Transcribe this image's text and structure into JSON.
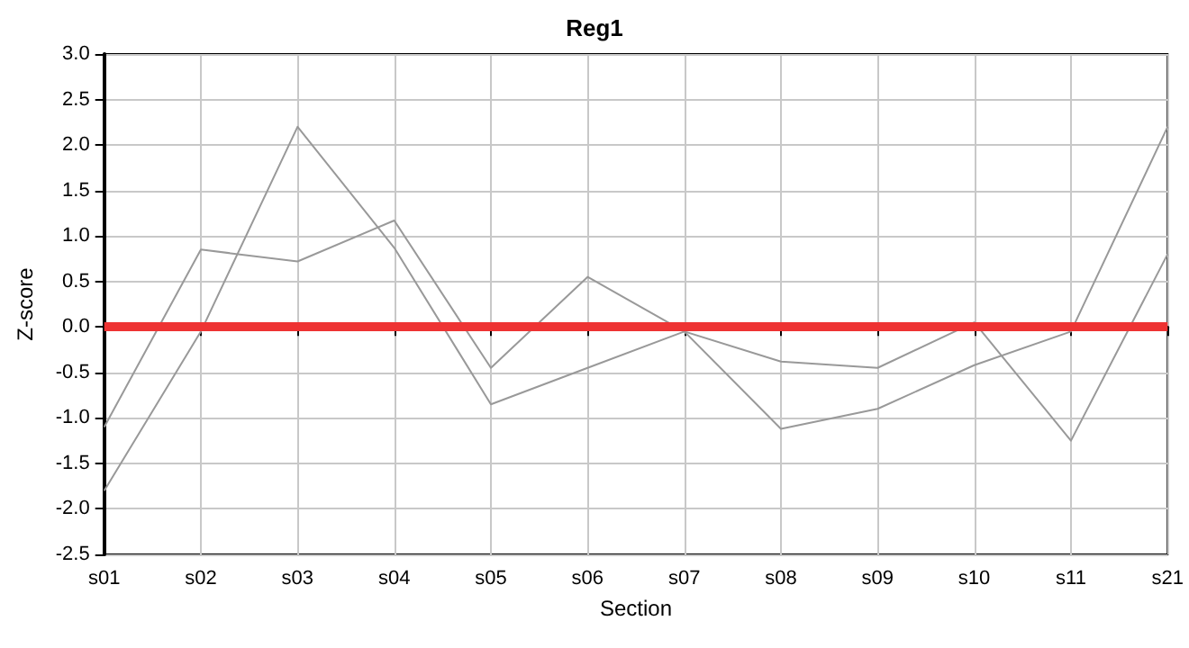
{
  "chart_data": {
    "type": "line",
    "title": "Reg1",
    "xlabel": "Section",
    "ylabel": "Z-score",
    "categories": [
      "s01",
      "s02",
      "s03",
      "s04",
      "s05",
      "s06",
      "s07",
      "s08",
      "s09",
      "s10",
      "s11",
      "s21"
    ],
    "series": [
      {
        "color": "#999999",
        "values": [
          -1.1,
          0.85,
          0.72,
          1.17,
          -0.45,
          0.55,
          -0.05,
          -0.38,
          -0.45,
          0.05,
          -1.25,
          0.8
        ]
      },
      {
        "color": "#999999",
        "values": [
          -1.8,
          -0.05,
          2.2,
          0.87,
          -0.85,
          -0.45,
          -0.05,
          -1.12,
          -0.9,
          -0.42,
          -0.05,
          2.2
        ]
      }
    ],
    "ylim": [
      -2.5,
      3
    ],
    "yticks": [
      -2.5,
      {
        "value": -2,
        "label": "-2.0"
      },
      -1.5,
      {
        "value": -1,
        "label": "-1.0"
      },
      -0.5,
      {
        "value": 0,
        "label": "0.0"
      },
      0.5,
      {
        "value": 1,
        "label": "1.0"
      },
      1.5,
      {
        "value": 2,
        "label": "2.0"
      },
      2.5,
      {
        "value": 3,
        "label": "3.0"
      }
    ],
    "ref_lines": [
      {
        "axis": "y",
        "value": 0,
        "color": "#ee3333"
      }
    ],
    "grid": true,
    "marker": "none",
    "line_style": "solid"
  }
}
